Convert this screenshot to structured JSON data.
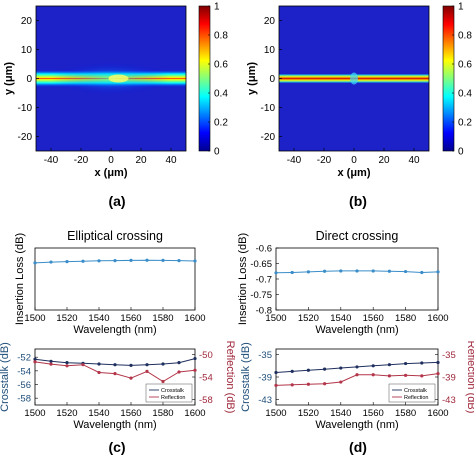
{
  "figure": {
    "panel_labels": [
      "(a)",
      "(b)",
      "(c)",
      "(d)"
    ]
  },
  "chart_data": [
    {
      "id": "a",
      "type": "heatmap",
      "xlabel": "x (μm)",
      "ylabel": "y (μm)",
      "xticks": [
        -40,
        -20,
        0,
        20,
        40
      ],
      "yticks": [
        20,
        10,
        0,
        -10,
        -20
      ],
      "xlim": [
        -50,
        50
      ],
      "ylim": [
        -25,
        25
      ],
      "colorbar": {
        "ticks": [
          1,
          0.8,
          0.6,
          0.4,
          0.2,
          0
        ],
        "range": [
          0,
          1
        ]
      },
      "field": {
        "core_y": 0,
        "description_color_low": "#00008f"
      }
    },
    {
      "id": "b",
      "type": "heatmap",
      "xlabel": "x (μm)",
      "ylabel": "y (μm)",
      "xticks": [
        -40,
        -20,
        0,
        20,
        40
      ],
      "yticks": [
        20,
        10,
        0,
        -10,
        -20
      ],
      "xlim": [
        -50,
        50
      ],
      "ylim": [
        -25,
        25
      ],
      "colorbar": {
        "ticks": [
          1,
          0.8,
          0.6,
          0.4,
          0.2,
          0
        ],
        "range": [
          0,
          1
        ]
      },
      "field": {
        "core_y": 0
      }
    },
    {
      "id": "c-top",
      "type": "line",
      "title": "Elliptical crossing",
      "xlabel": "Wavelength (nm)",
      "ylabel": "Insertion Loss (dB)",
      "xticks": [
        1500,
        1520,
        1540,
        1560,
        1580,
        1600
      ],
      "xlim": [
        1500,
        1600
      ],
      "ylim": [
        -0.3,
        0
      ],
      "series": [
        {
          "x": [
            1500,
            1510,
            1520,
            1530,
            1540,
            1550,
            1560,
            1570,
            1580,
            1590,
            1600
          ],
          "values": [
            -0.072,
            -0.068,
            -0.066,
            -0.064,
            -0.062,
            -0.061,
            -0.06,
            -0.059,
            -0.06,
            -0.061,
            -0.063
          ],
          "color": "#3a8dc9"
        }
      ]
    },
    {
      "id": "c-bottom",
      "type": "line",
      "xlabel": "Wavelength (nm)",
      "ylabel": "Crosstalk (dB)",
      "ylabel_right": "Reflection (dB)",
      "xticks": [
        1500,
        1520,
        1540,
        1560,
        1580,
        1600
      ],
      "yticks": [
        -52,
        -54,
        -56,
        -58
      ],
      "yticks_right": [
        -50,
        -54,
        -58
      ],
      "xlim": [
        1500,
        1600
      ],
      "ylim": [
        -59,
        -50.8
      ],
      "ylim_right": [
        -59,
        -49
      ],
      "legend": [
        "Crosstalk",
        "Reflection"
      ],
      "legend_position": "bottom-right",
      "series": [
        {
          "name": "Crosstalk",
          "axis": "left",
          "color": "#1f2f5e",
          "x": [
            1500,
            1510,
            1520,
            1530,
            1540,
            1550,
            1560,
            1570,
            1580,
            1590,
            1600
          ],
          "values": [
            -52.3,
            -52.6,
            -52.8,
            -52.9,
            -53.0,
            -53.1,
            -53.2,
            -53.1,
            -53.0,
            -52.8,
            -52.2
          ]
        },
        {
          "name": "Reflection",
          "axis": "right",
          "color": "#b3364a",
          "x": [
            1500,
            1510,
            1520,
            1530,
            1540,
            1550,
            1560,
            1570,
            1580,
            1590,
            1600
          ],
          "values": [
            -51.3,
            -51.7,
            -52.0,
            -51.8,
            -53.2,
            -53.4,
            -54.2,
            -53.0,
            -54.8,
            -53.1,
            -52.8
          ]
        }
      ]
    },
    {
      "id": "d-top",
      "type": "line",
      "title": "Direct crossing",
      "xlabel": "Wavelength (nm)",
      "ylabel": "Insertion Loss (dB)",
      "xticks": [
        1500,
        1520,
        1540,
        1560,
        1580,
        1600
      ],
      "yticks": [
        -0.6,
        -0.65,
        -0.7,
        -0.75,
        -0.8
      ],
      "xlim": [
        1500,
        1600
      ],
      "ylim": [
        -0.8,
        -0.6
      ],
      "series": [
        {
          "x": [
            1500,
            1510,
            1520,
            1530,
            1540,
            1550,
            1560,
            1570,
            1580,
            1590,
            1600
          ],
          "values": [
            -0.68,
            -0.679,
            -0.677,
            -0.675,
            -0.674,
            -0.674,
            -0.674,
            -0.675,
            -0.676,
            -0.679,
            -0.677
          ],
          "color": "#3a8dc9"
        }
      ]
    },
    {
      "id": "d-bottom",
      "type": "line",
      "xlabel": "Wavelength (nm)",
      "ylabel": "Crosstalk (dB)",
      "ylabel_right": "Reflection (dB)",
      "xticks": [
        1500,
        1520,
        1540,
        1560,
        1580,
        1600
      ],
      "yticks": [
        -35,
        -39,
        -43
      ],
      "yticks_right": [
        -35,
        -39,
        -43
      ],
      "xlim": [
        1500,
        1600
      ],
      "ylim": [
        -44,
        -34
      ],
      "ylim_right": [
        -44,
        -34
      ],
      "legend": [
        "Crosstalk",
        "Reflection"
      ],
      "legend_position": "bottom-right",
      "series": [
        {
          "name": "Crosstalk",
          "axis": "left",
          "color": "#1f2f5e",
          "x": [
            1500,
            1510,
            1520,
            1530,
            1540,
            1550,
            1560,
            1570,
            1580,
            1590,
            1600
          ],
          "values": [
            -38.2,
            -38.0,
            -37.8,
            -37.6,
            -37.4,
            -37.2,
            -37.0,
            -36.8,
            -36.6,
            -36.5,
            -36.4
          ]
        },
        {
          "name": "Reflection",
          "axis": "right",
          "color": "#b3364a",
          "x": [
            1500,
            1510,
            1520,
            1530,
            1540,
            1550,
            1560,
            1570,
            1580,
            1590,
            1600
          ],
          "values": [
            -40.5,
            -40.4,
            -40.3,
            -40.2,
            -39.9,
            -38.6,
            -38.6,
            -38.8,
            -38.7,
            -38.8,
            -38.4
          ]
        }
      ]
    }
  ]
}
